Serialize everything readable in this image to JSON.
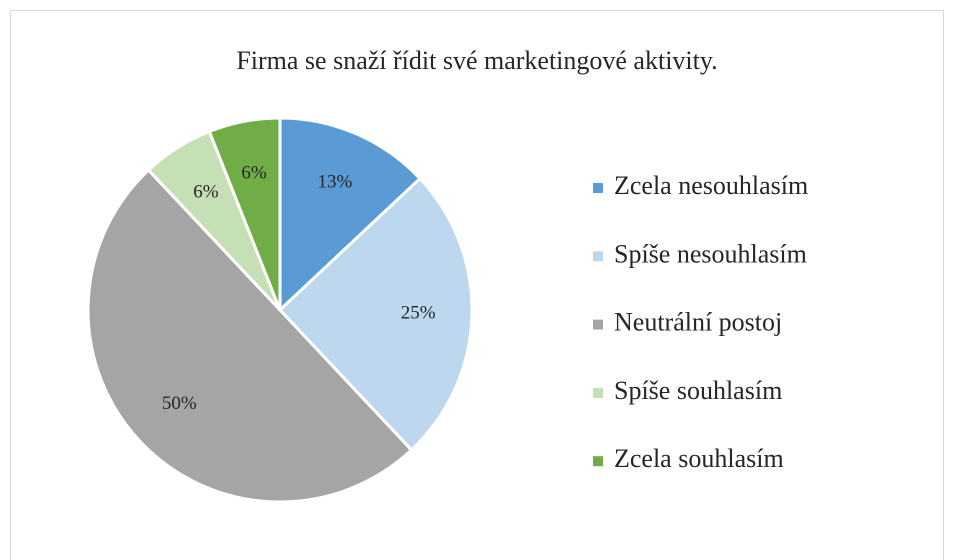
{
  "chart_data": {
    "type": "pie",
    "title": "Firma se snaží řídit své marketingové aktivity.",
    "categories": [
      "Zcela nesouhlasím",
      "Spíše nesouhlasím",
      "Neutrální postoj",
      "Spíše souhlasím",
      "Zcela souhlasím"
    ],
    "values": [
      13,
      25,
      50,
      6,
      6
    ],
    "value_labels": [
      "13%",
      "25%",
      "50%",
      "6%",
      "6%"
    ],
    "colors": [
      "#5b9bd5",
      "#bdd7ee",
      "#a5a5a5",
      "#c5e0b4",
      "#70ad47"
    ],
    "legend": "right"
  }
}
